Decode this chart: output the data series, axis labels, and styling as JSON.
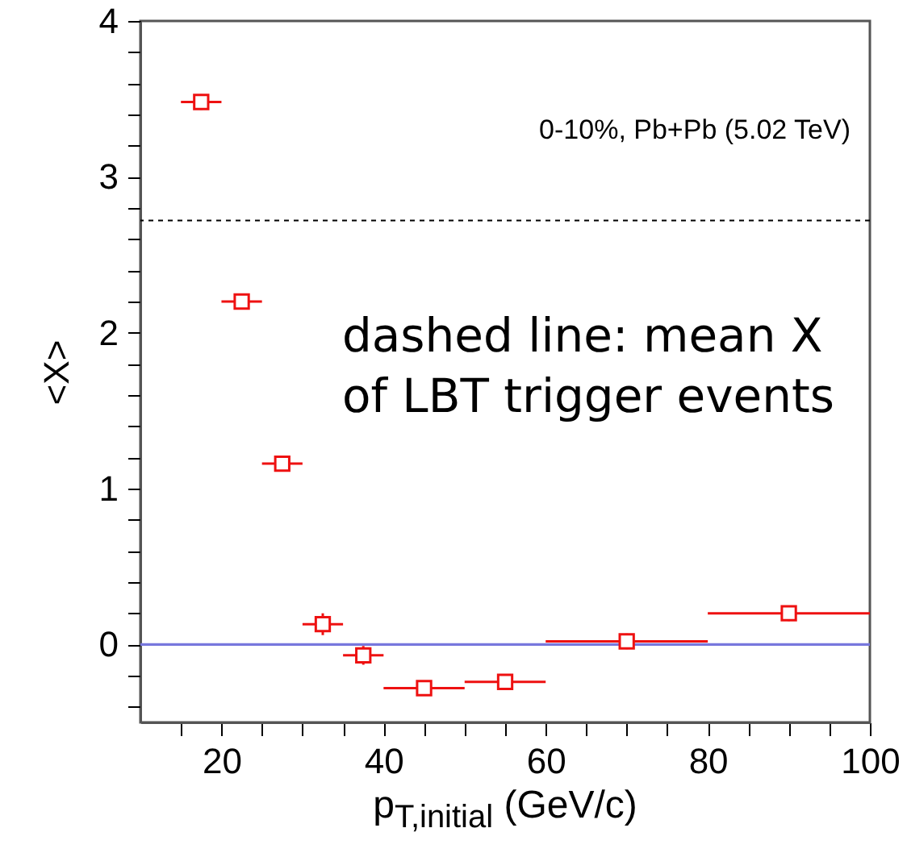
{
  "chart_data": {
    "type": "scatter",
    "xlabel": "p$_{T,initial}$ (GeV/c)",
    "ylabel": "<X>",
    "x": [
      17.5,
      22.5,
      27.5,
      32.5,
      37.5,
      45,
      55,
      70,
      90
    ],
    "series": [
      {
        "color": "#ee1111",
        "marker": "square",
        "values": [
          3.48,
          2.2,
          1.16,
          0.13,
          -0.07,
          -0.28,
          -0.24,
          0.02,
          0.2
        ],
        "errors": [
          0.05,
          0.05,
          0.05,
          0.07,
          0.06,
          0.04,
          0.04,
          0.05,
          0.05
        ],
        "xerrors": [
          2.5,
          2.5,
          2.5,
          2.5,
          2.5,
          5,
          5,
          10,
          10
        ]
      }
    ],
    "xlim": [
      10,
      100
    ],
    "xticks": [
      {
        "value": 15,
        "label": null
      },
      20,
      {
        "value": 25,
        "label": null
      },
      {
        "value": 30,
        "label": null
      },
      {
        "value": 35,
        "label": null
      },
      40,
      {
        "value": 45,
        "label": null
      },
      {
        "value": 50,
        "label": null
      },
      {
        "value": 55,
        "label": null
      },
      60,
      {
        "value": 65,
        "label": null
      },
      {
        "value": 70,
        "label": null
      },
      {
        "value": 75,
        "label": null
      },
      80,
      {
        "value": 85,
        "label": null
      },
      {
        "value": 90,
        "label": null
      },
      {
        "value": 95,
        "label": null
      },
      100
    ],
    "ylim": [
      -0.5,
      4
    ],
    "yticks": [
      {
        "value": -0.4,
        "label": null
      },
      {
        "value": -0.2,
        "label": null
      },
      0,
      {
        "value": 0.2,
        "label": null
      },
      {
        "value": 0.4,
        "label": null
      },
      {
        "value": 0.6,
        "label": null
      },
      {
        "value": 0.8,
        "label": null
      },
      1,
      {
        "value": 1.2,
        "label": null
      },
      {
        "value": 1.4,
        "label": null
      },
      {
        "value": 1.6,
        "label": null
      },
      {
        "value": 1.8,
        "label": null
      },
      2,
      {
        "value": 2.2,
        "label": null
      },
      {
        "value": 2.4,
        "label": null
      },
      {
        "value": 2.6,
        "label": null
      },
      {
        "value": 2.8,
        "label": null
      },
      3,
      {
        "value": 3.2,
        "label": null
      },
      {
        "value": 3.4,
        "label": null
      },
      {
        "value": 3.6,
        "label": null
      },
      {
        "value": 3.8,
        "label": null
      },
      4
    ],
    "ref_lines": [
      {
        "axis": "y",
        "value": 2.72,
        "color": "#000000",
        "line_style": "dashed"
      },
      {
        "axis": "y",
        "value": 0,
        "color": "#7777dd",
        "line_style": "solid"
      }
    ],
    "annotations": [
      "0-10%, Pb+Pb (5.02 TeV)",
      "dashed line: mean X\nof LBT trigger events"
    ],
    "grid": false
  }
}
